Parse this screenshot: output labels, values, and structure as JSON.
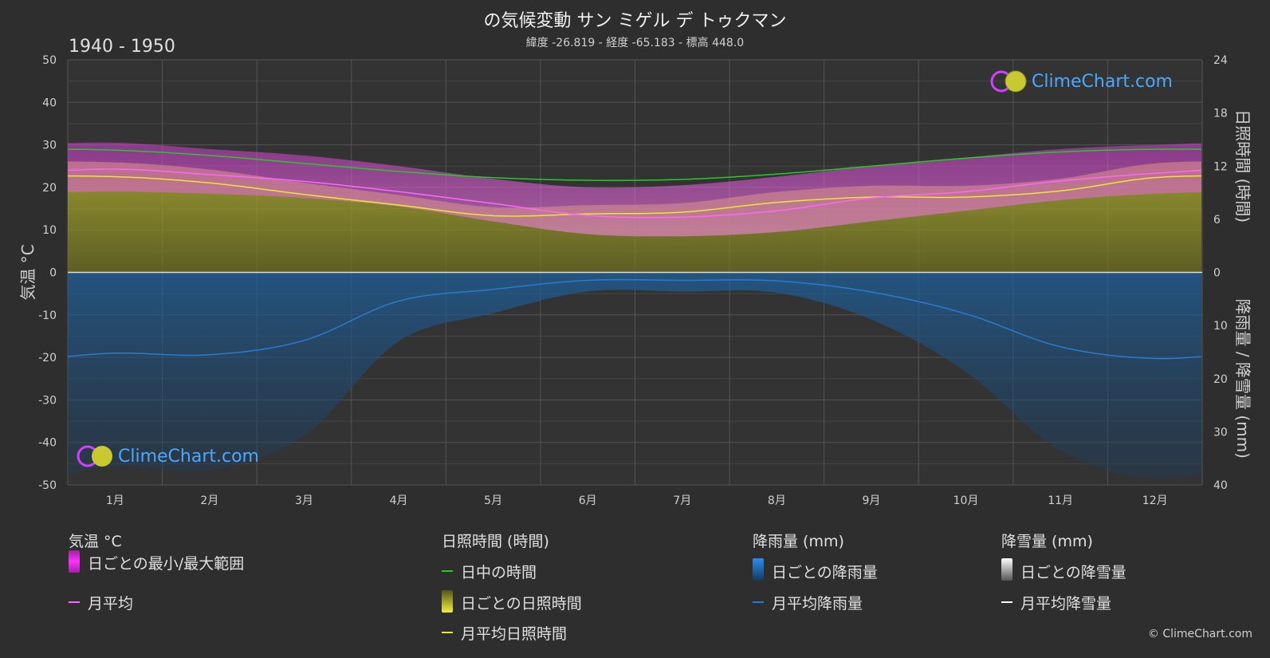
{
  "header": {
    "title": "の気候変動 サン ミゲル デ トゥクマン",
    "subtitle": "緯度 -26.819 - 経度 -65.183 - 標高 448.0",
    "period": "1940 - 1950"
  },
  "brand": {
    "logo_text": "ClimeChart.com",
    "copyright": "© ClimeChart.com"
  },
  "colors": {
    "daylight": "#22cc22",
    "sunshine": "#e8e830",
    "temp_avg": "#ff66ff",
    "temp_range": "#cc33cc",
    "rain": "#2a7bd0",
    "snow": "#ffffff"
  },
  "legend": {
    "temperature": {
      "heading": "気温 °C",
      "range": "日ごとの最小/最大範囲",
      "avg": "月平均"
    },
    "sunshine": {
      "heading": "日照時間 (時間)",
      "daylight": "日中の時間",
      "daily": "日ごとの日照時間",
      "avg": "月平均日照時間"
    },
    "rain": {
      "heading": "降雨量 (mm)",
      "daily": "日ごとの降雨量",
      "avg": "月平均降雨量"
    },
    "snow": {
      "heading": "降雪量 (mm)",
      "daily": "日ごとの降雪量",
      "avg": "月平均降雪量"
    }
  },
  "chart_data": {
    "type": "line",
    "categories": [
      "1月",
      "2月",
      "3月",
      "4月",
      "5月",
      "6月",
      "7月",
      "8月",
      "9月",
      "10月",
      "11月",
      "12月"
    ],
    "left_axis": {
      "label": "気温 °C",
      "ylim": [
        -50,
        50
      ],
      "ticks": [
        50,
        40,
        30,
        20,
        10,
        0,
        -10,
        -20,
        -30,
        -40,
        -50
      ]
    },
    "right_axis_top": {
      "label": "日照時間 (時間)",
      "ylim": [
        0,
        24
      ],
      "ticks": [
        24,
        18,
        12,
        6,
        0
      ]
    },
    "right_axis_bottom": {
      "label": "降雨量 / 降雪量 (mm)",
      "ylim": [
        0,
        40
      ],
      "ticks": [
        0,
        10,
        20,
        30,
        40
      ]
    },
    "grid": true,
    "series": [
      {
        "name": "日中の時間",
        "axis": "hours",
        "values": [
          13.8,
          13.2,
          12.3,
          11.4,
          10.7,
          10.4,
          10.5,
          11.1,
          12.0,
          12.9,
          13.6,
          13.9
        ]
      },
      {
        "name": "月平均日照時間",
        "axis": "hours",
        "values": [
          10.8,
          10.1,
          8.8,
          7.6,
          6.4,
          6.6,
          6.8,
          7.9,
          8.5,
          8.5,
          9.2,
          10.7
        ]
      },
      {
        "name": "月平均",
        "axis": "temp",
        "values": [
          24.3,
          23.0,
          21.4,
          19.0,
          16.2,
          13.4,
          13.0,
          14.5,
          17.5,
          19.0,
          21.5,
          23.3
        ]
      },
      {
        "name": "月平均降雨量",
        "axis": "rain",
        "values": [
          15.2,
          15.5,
          12.8,
          5.4,
          3.2,
          1.5,
          1.5,
          1.6,
          3.7,
          7.8,
          14.0,
          16.2
        ]
      },
      {
        "name": "月平均降雪量",
        "axis": "rain",
        "values": [
          0,
          0,
          0,
          0,
          0,
          0,
          0,
          0,
          0,
          0,
          0,
          0
        ]
      }
    ],
    "temp_range": {
      "name": "日ごとの最小/最大範囲",
      "min": [
        19.0,
        18.5,
        17.5,
        15.5,
        12.0,
        9.0,
        8.5,
        9.5,
        12.0,
        14.5,
        17.0,
        18.5
      ],
      "max": [
        30.5,
        29.0,
        27.5,
        25.0,
        22.0,
        20.0,
        20.5,
        22.5,
        25.0,
        27.0,
        29.0,
        30.0
      ]
    }
  }
}
